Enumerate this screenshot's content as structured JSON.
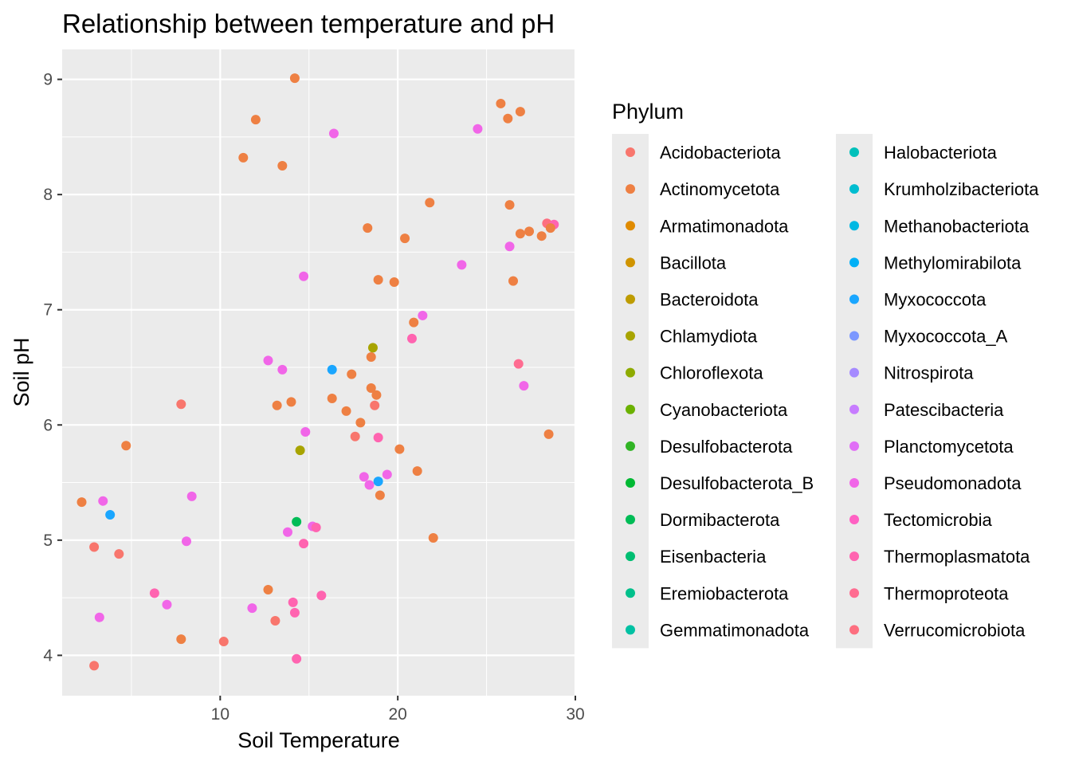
{
  "chart_data": {
    "type": "scatter",
    "title": "Relationship between temperature and pH",
    "xlabel": "Soil Temperature",
    "ylabel": "Soil pH",
    "xlim": [
      1.1,
      30.0
    ],
    "ylim": [
      3.65,
      9.26
    ],
    "x_ticks": [
      10,
      20,
      30
    ],
    "y_ticks": [
      4,
      5,
      6,
      7,
      8,
      9
    ],
    "grid": true,
    "legend": {
      "title": "Phylum",
      "position": "right",
      "columns": 2,
      "entries": [
        {
          "name": "Acidobacteriota",
          "color": "#F8766D"
        },
        {
          "name": "Actinomycetota",
          "color": "#EE8043"
        },
        {
          "name": "Armatimonadota",
          "color": "#E08B00"
        },
        {
          "name": "Bacillota",
          "color": "#D09400"
        },
        {
          "name": "Bacteroidota",
          "color": "#BE9C00"
        },
        {
          "name": "Chlamydiota",
          "color": "#A8A400"
        },
        {
          "name": "Chloroflexota",
          "color": "#8EAB00"
        },
        {
          "name": "Cyanobacteriota",
          "color": "#6BB100"
        },
        {
          "name": "Desulfobacterota",
          "color": "#31B425"
        },
        {
          "name": "Desulfobacterota_B",
          "color": "#00B933"
        },
        {
          "name": "Dormibacterota",
          "color": "#00BC56"
        },
        {
          "name": "Eisenbacteria",
          "color": "#00BE72"
        },
        {
          "name": "Eremiobacterota",
          "color": "#00C08B"
        },
        {
          "name": "Gemmatimonadota",
          "color": "#00C1A3"
        },
        {
          "name": "Halobacteriota",
          "color": "#00C0BA"
        },
        {
          "name": "Krumholzibacteriota",
          "color": "#00BDD0"
        },
        {
          "name": "Methanobacteriota",
          "color": "#00B8E3"
        },
        {
          "name": "Methylomirabilota",
          "color": "#00B0F6"
        },
        {
          "name": "Myxococcota",
          "color": "#1AA6FF"
        },
        {
          "name": "Myxococcota_A",
          "color": "#7C98FF"
        },
        {
          "name": "Nitrospirota",
          "color": "#A58AFF"
        },
        {
          "name": "Patescibacteria",
          "color": "#C77CFF"
        },
        {
          "name": "Planctomycetota",
          "color": "#E06FF6"
        },
        {
          "name": "Pseudomonadota",
          "color": "#F166E8"
        },
        {
          "name": "Tectomicrobia",
          "color": "#FF61C3"
        },
        {
          "name": "Thermoplasmatota",
          "color": "#FF64B0"
        },
        {
          "name": "Thermoproteota",
          "color": "#FF6C91"
        },
        {
          "name": "Verrucomicrobiota",
          "color": "#FD6F80"
        }
      ]
    },
    "points": [
      {
        "x": 14.2,
        "y": 9.01,
        "color": "#EE8043"
      },
      {
        "x": 12.0,
        "y": 8.65,
        "color": "#EE8043"
      },
      {
        "x": 11.3,
        "y": 8.32,
        "color": "#EE8043"
      },
      {
        "x": 13.5,
        "y": 8.25,
        "color": "#EE8043"
      },
      {
        "x": 16.4,
        "y": 8.53,
        "color": "#F166E8"
      },
      {
        "x": 25.8,
        "y": 8.79,
        "color": "#EE8043"
      },
      {
        "x": 26.2,
        "y": 8.66,
        "color": "#EE8043"
      },
      {
        "x": 26.9,
        "y": 8.72,
        "color": "#EE8043"
      },
      {
        "x": 24.5,
        "y": 8.57,
        "color": "#F166E8"
      },
      {
        "x": 21.8,
        "y": 7.93,
        "color": "#EE8043"
      },
      {
        "x": 26.3,
        "y": 7.91,
        "color": "#EE8043"
      },
      {
        "x": 18.3,
        "y": 7.71,
        "color": "#EE8043"
      },
      {
        "x": 20.4,
        "y": 7.62,
        "color": "#EE8043"
      },
      {
        "x": 26.9,
        "y": 7.66,
        "color": "#EE8043"
      },
      {
        "x": 27.4,
        "y": 7.68,
        "color": "#EE8043"
      },
      {
        "x": 28.1,
        "y": 7.64,
        "color": "#EE8043"
      },
      {
        "x": 28.4,
        "y": 7.75,
        "color": "#FD6F80"
      },
      {
        "x": 28.8,
        "y": 7.74,
        "color": "#FF64B0"
      },
      {
        "x": 28.6,
        "y": 7.71,
        "color": "#EE8043"
      },
      {
        "x": 26.3,
        "y": 7.55,
        "color": "#F166E8"
      },
      {
        "x": 23.6,
        "y": 7.39,
        "color": "#F166E8"
      },
      {
        "x": 14.7,
        "y": 7.29,
        "color": "#F166E8"
      },
      {
        "x": 18.9,
        "y": 7.26,
        "color": "#EE8043"
      },
      {
        "x": 19.8,
        "y": 7.24,
        "color": "#EE8043"
      },
      {
        "x": 26.5,
        "y": 7.25,
        "color": "#EE8043"
      },
      {
        "x": 21.4,
        "y": 6.95,
        "color": "#F166E8"
      },
      {
        "x": 20.9,
        "y": 6.89,
        "color": "#EE8043"
      },
      {
        "x": 20.8,
        "y": 6.75,
        "color": "#FF64B0"
      },
      {
        "x": 18.6,
        "y": 6.67,
        "color": "#A8A400"
      },
      {
        "x": 18.5,
        "y": 6.59,
        "color": "#EE8043"
      },
      {
        "x": 12.7,
        "y": 6.56,
        "color": "#F166E8"
      },
      {
        "x": 13.5,
        "y": 6.48,
        "color": "#F166E8"
      },
      {
        "x": 16.3,
        "y": 6.48,
        "color": "#1AA6FF"
      },
      {
        "x": 17.4,
        "y": 6.44,
        "color": "#EE8043"
      },
      {
        "x": 26.8,
        "y": 6.53,
        "color": "#FF6C91"
      },
      {
        "x": 27.1,
        "y": 6.34,
        "color": "#F166E8"
      },
      {
        "x": 18.5,
        "y": 6.32,
        "color": "#EE8043"
      },
      {
        "x": 18.8,
        "y": 6.26,
        "color": "#EE8043"
      },
      {
        "x": 16.3,
        "y": 6.23,
        "color": "#EE8043"
      },
      {
        "x": 14.0,
        "y": 6.2,
        "color": "#EE8043"
      },
      {
        "x": 13.2,
        "y": 6.17,
        "color": "#EE8043"
      },
      {
        "x": 7.8,
        "y": 6.18,
        "color": "#F8766D"
      },
      {
        "x": 18.7,
        "y": 6.17,
        "color": "#F8766D"
      },
      {
        "x": 17.1,
        "y": 6.12,
        "color": "#EE8043"
      },
      {
        "x": 17.9,
        "y": 6.02,
        "color": "#EE8043"
      },
      {
        "x": 14.8,
        "y": 5.94,
        "color": "#F166E8"
      },
      {
        "x": 17.6,
        "y": 5.9,
        "color": "#F8766D"
      },
      {
        "x": 18.9,
        "y": 5.89,
        "color": "#FF64B0"
      },
      {
        "x": 28.5,
        "y": 5.92,
        "color": "#EE8043"
      },
      {
        "x": 4.7,
        "y": 5.82,
        "color": "#EE8043"
      },
      {
        "x": 14.5,
        "y": 5.78,
        "color": "#A8A400"
      },
      {
        "x": 20.1,
        "y": 5.79,
        "color": "#EE8043"
      },
      {
        "x": 21.1,
        "y": 5.6,
        "color": "#EE8043"
      },
      {
        "x": 18.1,
        "y": 5.55,
        "color": "#F166E8"
      },
      {
        "x": 19.4,
        "y": 5.57,
        "color": "#F166E8"
      },
      {
        "x": 18.4,
        "y": 5.48,
        "color": "#F166E8"
      },
      {
        "x": 18.9,
        "y": 5.51,
        "color": "#1AA6FF"
      },
      {
        "x": 19.0,
        "y": 5.39,
        "color": "#EE8043"
      },
      {
        "x": 2.2,
        "y": 5.33,
        "color": "#EE8043"
      },
      {
        "x": 3.4,
        "y": 5.34,
        "color": "#F166E8"
      },
      {
        "x": 8.4,
        "y": 5.38,
        "color": "#F166E8"
      },
      {
        "x": 3.8,
        "y": 5.22,
        "color": "#1AA6FF"
      },
      {
        "x": 14.3,
        "y": 5.16,
        "color": "#00BC56"
      },
      {
        "x": 15.2,
        "y": 5.12,
        "color": "#F166E8"
      },
      {
        "x": 15.4,
        "y": 5.11,
        "color": "#FF64B0"
      },
      {
        "x": 13.8,
        "y": 5.07,
        "color": "#F166E8"
      },
      {
        "x": 22.0,
        "y": 5.02,
        "color": "#EE8043"
      },
      {
        "x": 8.1,
        "y": 4.99,
        "color": "#F166E8"
      },
      {
        "x": 14.7,
        "y": 4.97,
        "color": "#FF64B0"
      },
      {
        "x": 2.9,
        "y": 4.94,
        "color": "#F8766D"
      },
      {
        "x": 4.3,
        "y": 4.88,
        "color": "#F8766D"
      },
      {
        "x": 12.7,
        "y": 4.57,
        "color": "#EE8043"
      },
      {
        "x": 6.3,
        "y": 4.54,
        "color": "#FF64B0"
      },
      {
        "x": 15.7,
        "y": 4.52,
        "color": "#FF64B0"
      },
      {
        "x": 14.1,
        "y": 4.46,
        "color": "#FF64B0"
      },
      {
        "x": 7.0,
        "y": 4.44,
        "color": "#F166E8"
      },
      {
        "x": 11.8,
        "y": 4.41,
        "color": "#F166E8"
      },
      {
        "x": 14.2,
        "y": 4.37,
        "color": "#FF64B0"
      },
      {
        "x": 3.2,
        "y": 4.33,
        "color": "#F166E8"
      },
      {
        "x": 13.1,
        "y": 4.3,
        "color": "#F8766D"
      },
      {
        "x": 7.8,
        "y": 4.14,
        "color": "#EE8043"
      },
      {
        "x": 10.2,
        "y": 4.12,
        "color": "#F8766D"
      },
      {
        "x": 14.3,
        "y": 3.97,
        "color": "#FF64B0"
      },
      {
        "x": 2.9,
        "y": 3.91,
        "color": "#F8766D"
      }
    ]
  }
}
